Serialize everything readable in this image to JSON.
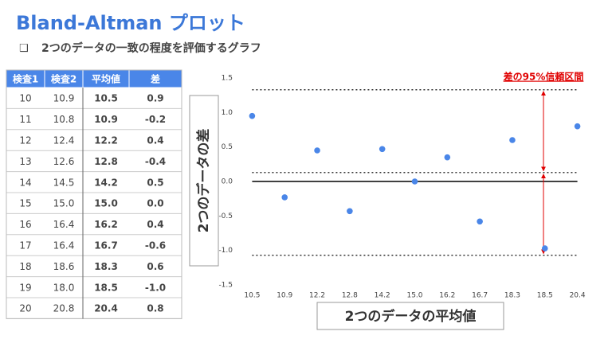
{
  "header": {
    "title": "Bland-Altman プロット",
    "bullet": "❑",
    "subtitle": "2つのデータの一致の程度を評価するグラフ"
  },
  "table": {
    "header": [
      "検査1",
      "検査2",
      "平均値",
      "差"
    ],
    "rows": [
      [
        "10",
        "10.9",
        "10.5",
        "0.9"
      ],
      [
        "11",
        "10.8",
        "10.9",
        "-0.2"
      ],
      [
        "12",
        "12.4",
        "12.2",
        "0.4"
      ],
      [
        "13",
        "12.6",
        "12.8",
        "-0.4"
      ],
      [
        "14",
        "14.5",
        "14.2",
        "0.5"
      ],
      [
        "15",
        "15.0",
        "15.0",
        "0.0"
      ],
      [
        "16",
        "16.4",
        "16.2",
        "0.4"
      ],
      [
        "17",
        "16.4",
        "16.7",
        "-0.6"
      ],
      [
        "18",
        "18.6",
        "18.3",
        "0.6"
      ],
      [
        "19",
        "18.0",
        "18.5",
        "-1.0"
      ],
      [
        "20",
        "20.8",
        "20.4",
        "0.8"
      ]
    ]
  },
  "chart_data": {
    "type": "scatter",
    "categories": [
      "10.5",
      "10.9",
      "12.2",
      "12.8",
      "14.2",
      "15.0",
      "16.2",
      "16.7",
      "18.3",
      "18.5",
      "20.4"
    ],
    "values": [
      0.95,
      -0.23,
      0.45,
      -0.43,
      0.47,
      0.0,
      0.35,
      -0.58,
      0.6,
      -0.97,
      0.8
    ],
    "color": "#4a86e8",
    "ylim": [
      -1.5,
      1.5
    ],
    "yticks": [
      -1.5,
      {
        "value": -1,
        "label": "-1.0"
      },
      -0.5,
      {
        "value": 0,
        "label": "0.0"
      },
      0.5,
      {
        "value": 1,
        "label": "1.0"
      },
      1.5
    ],
    "reference_lines": [
      1.33,
      0.13,
      -1.07
    ],
    "x_label": "2つのデータの平均値",
    "y_label": "2つのデータの差",
    "annotation": "差の95%信頼区間",
    "annotation_color": "#e00000"
  }
}
